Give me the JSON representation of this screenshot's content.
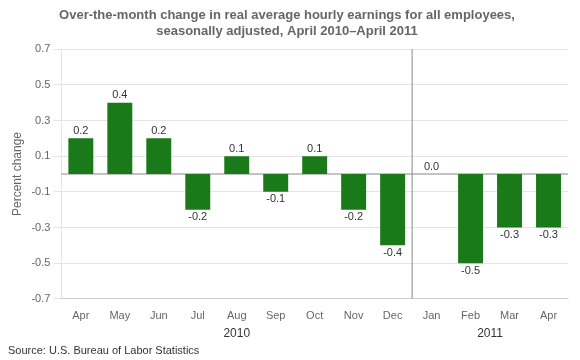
{
  "chart_data": {
    "type": "bar",
    "title": "Over-the-month change in real average hourly earnings for all employees,\nseasonally adjusted, April 2010–April 2011",
    "ylabel": "Percent change",
    "annotations": [
      "2010",
      "2011",
      "Source: U.S. Bureau of Labor Statistics"
    ],
    "categories": [
      "Apr",
      "May",
      "Jun",
      "Jul",
      "Aug",
      "Sep",
      "Oct",
      "Nov",
      "Dec",
      "Jan",
      "Feb",
      "Mar",
      "Apr"
    ],
    "values": [
      0.2,
      0.4,
      0.2,
      -0.2,
      0.1,
      -0.1,
      0.1,
      -0.2,
      -0.4,
      0.0,
      -0.5,
      -0.3,
      -0.3
    ],
    "value_labels": [
      "0.2",
      "0.4",
      "0.2",
      "-0.2",
      "0.1",
      "-0.1",
      "0.1",
      "-0.2",
      "-0.4",
      "0.0",
      "-0.5",
      "-0.3",
      "-0.3"
    ],
    "color": "#1a7a1a",
    "ylim": [
      -0.7,
      0.7
    ],
    "yticks": [
      -0.7,
      -0.5,
      -0.3,
      -0.1,
      0.1,
      0.3,
      0.5,
      0.7
    ],
    "grid": true,
    "data_labels": true
  }
}
